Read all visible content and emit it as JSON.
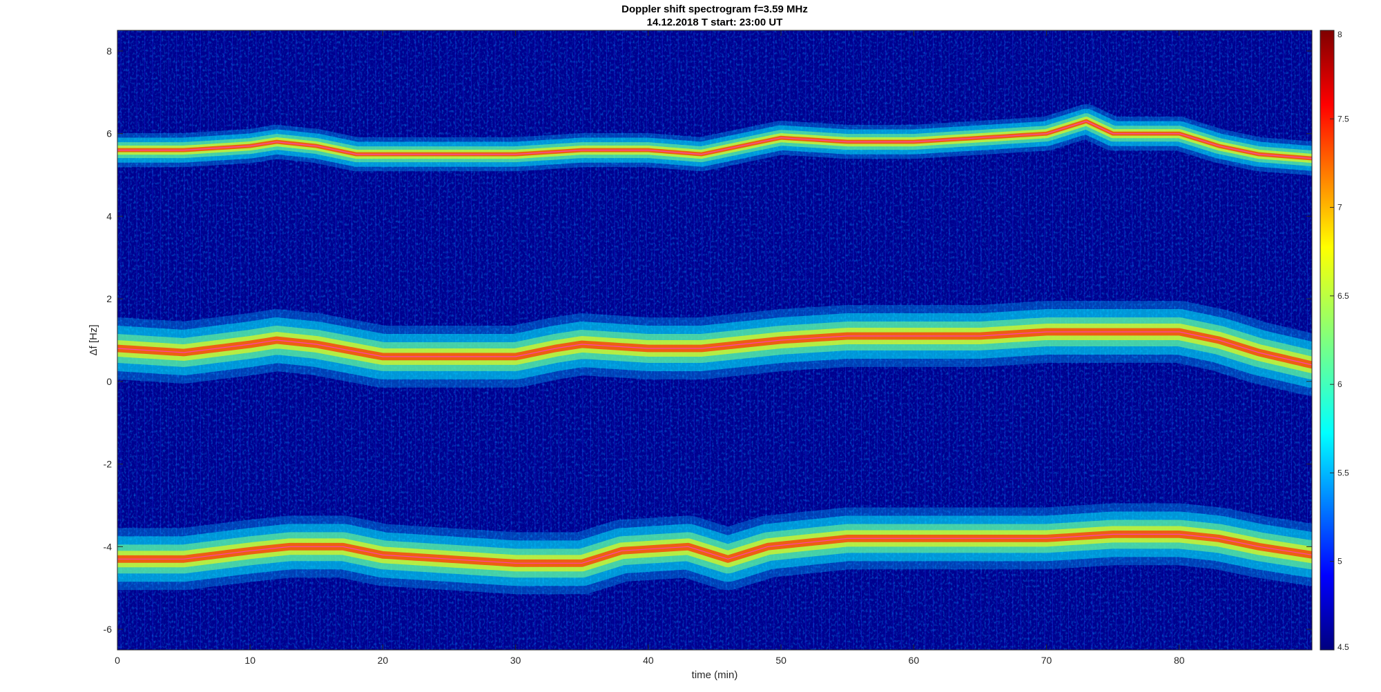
{
  "chart_data": {
    "type": "heatmap",
    "title": "Doppler shift spectrogram f=3.59 MHz",
    "subtitle": "14.12.2018   T start: 23:00 UT",
    "xlabel": "time (min)",
    "ylabel": "Δf [Hz]",
    "xlim": [
      0,
      90
    ],
    "ylim": [
      -6.5,
      8.5
    ],
    "x_ticks": [
      "0",
      "10",
      "20",
      "30",
      "40",
      "50",
      "60",
      "70",
      "80"
    ],
    "y_ticks": [
      "8",
      "6",
      "4",
      "2",
      "0",
      "-2",
      "-4",
      "-6"
    ],
    "colorbar": {
      "colormap": "jet",
      "range": [
        4.5,
        8
      ],
      "ticks": [
        "8",
        "7.5",
        "7",
        "6.5",
        "6",
        "5.5",
        "5",
        "4.5"
      ]
    },
    "series": [
      {
        "x": [
          0,
          5,
          10,
          12,
          15,
          18,
          20,
          25,
          30,
          35,
          40,
          44,
          47,
          50,
          55,
          60,
          65,
          70,
          73,
          75,
          80,
          83,
          86,
          90
        ],
        "y": [
          5.6,
          5.6,
          5.7,
          5.8,
          5.7,
          5.5,
          5.5,
          5.5,
          5.5,
          5.6,
          5.6,
          5.5,
          5.7,
          5.9,
          5.8,
          5.8,
          5.9,
          6.0,
          6.3,
          6.0,
          6.0,
          5.7,
          5.5,
          5.4
        ]
      },
      {
        "x": [
          0,
          5,
          10,
          12,
          15,
          20,
          25,
          30,
          33,
          35,
          40,
          44,
          47,
          50,
          55,
          60,
          65,
          70,
          75,
          80,
          83,
          86,
          90
        ],
        "y": [
          0.8,
          0.7,
          0.9,
          1.0,
          0.9,
          0.6,
          0.6,
          0.6,
          0.8,
          0.9,
          0.8,
          0.8,
          0.9,
          1.0,
          1.1,
          1.1,
          1.1,
          1.2,
          1.2,
          1.2,
          1.0,
          0.7,
          0.4
        ]
      },
      {
        "x": [
          0,
          5,
          10,
          13,
          17,
          20,
          25,
          30,
          35,
          38,
          43,
          46,
          49,
          52,
          55,
          60,
          65,
          70,
          75,
          80,
          83,
          86,
          90
        ],
        "y": [
          -4.3,
          -4.3,
          -4.1,
          -4.0,
          -4.0,
          -4.2,
          -4.3,
          -4.4,
          -4.4,
          -4.1,
          -4.0,
          -4.3,
          -4.0,
          -3.9,
          -3.8,
          -3.8,
          -3.8,
          -3.8,
          -3.7,
          -3.7,
          -3.8,
          -4.0,
          -4.2
        ]
      }
    ]
  }
}
